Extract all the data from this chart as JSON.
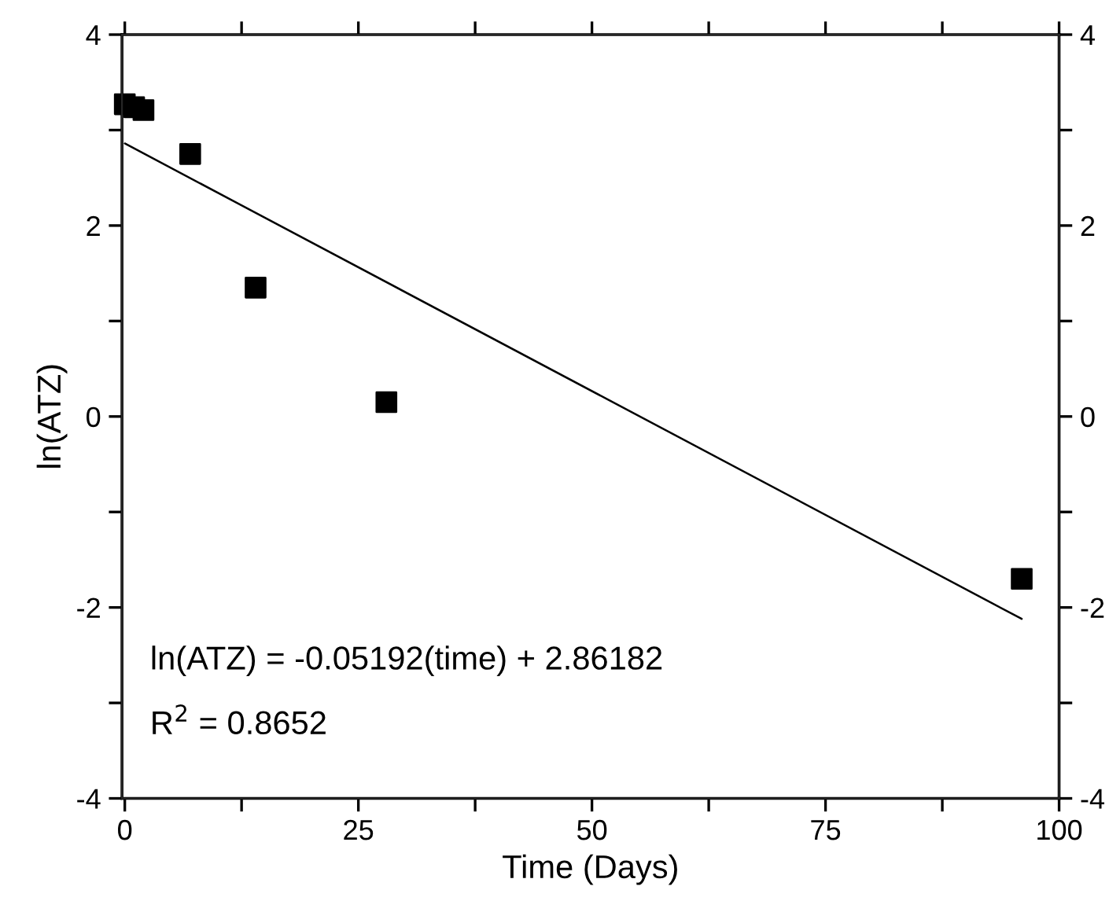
{
  "chart_data": {
    "type": "scatter",
    "xlabel": "Time (Days)",
    "ylabel": "ln(ATZ)",
    "xlim": [
      -0.3,
      100
    ],
    "ylim": [
      -4,
      4
    ],
    "xticks": [
      0,
      {
        "value": 12.5,
        "label": null
      },
      25,
      {
        "value": 37.5,
        "label": null
      },
      50,
      {
        "value": 62.5,
        "label": null
      },
      75,
      {
        "value": 87.5,
        "label": null
      },
      100
    ],
    "yticks": [
      -4,
      {
        "value": -3,
        "label": null
      },
      -2,
      {
        "value": -1,
        "label": null
      },
      0,
      {
        "value": 1,
        "label": null
      },
      2,
      {
        "value": 3,
        "label": null
      },
      4
    ],
    "y2lim": [
      -4,
      4
    ],
    "y2ticks": [
      -4,
      {
        "value": -3,
        "label": null
      },
      -2,
      {
        "value": -1,
        "label": null
      },
      0,
      {
        "value": 1,
        "label": null
      },
      2,
      {
        "value": 3,
        "label": null
      },
      4
    ],
    "grid": false,
    "legend": false,
    "series": [
      {
        "marker": "square",
        "color": "#000000",
        "x": [
          0,
          1,
          2,
          7,
          14,
          28,
          96
        ],
        "values": [
          3.27,
          3.24,
          3.21,
          2.75,
          1.35,
          0.15,
          -1.7
        ]
      },
      {
        "type": "line",
        "line_style": "solid",
        "marker": "none",
        "color": "#000000",
        "x": [
          0,
          96
        ],
        "values": [
          2.86,
          -2.12
        ]
      }
    ],
    "annotations": [
      "ln(ATZ) = -0.05192(time) + 2.86182",
      "R$^{2}$ = 0.8652"
    ]
  }
}
